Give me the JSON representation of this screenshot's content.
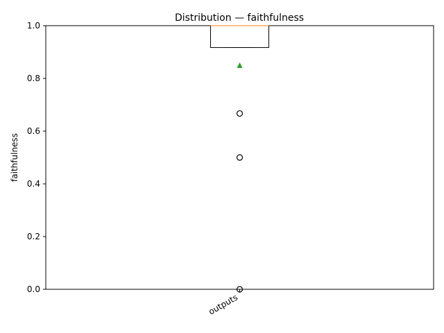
{
  "chart_data": {
    "type": "box",
    "title": "Distribution — faithfulness",
    "xlabel": "",
    "ylabel": "faithfulness",
    "categories": [
      "outputs"
    ],
    "ylim": [
      0,
      1
    ],
    "yticks": [
      "0.0",
      "0.2",
      "0.4",
      "0.6",
      "0.8",
      "1.0"
    ],
    "ytick_values": [
      0,
      0.2,
      0.4,
      0.6,
      0.8,
      1.0
    ],
    "grid": false,
    "boxes": [
      {
        "name": "outputs",
        "q1": 0.917,
        "median": 1.0,
        "q3": 1.0,
        "whisker_low": 0.917,
        "whisker_high": 1.0,
        "mean": 0.85,
        "outliers": [
          0.667,
          0.5,
          0.0
        ]
      }
    ],
    "colors": {
      "median": "#ff7f0e",
      "mean": "#2ca02c",
      "box": "#000000"
    }
  }
}
